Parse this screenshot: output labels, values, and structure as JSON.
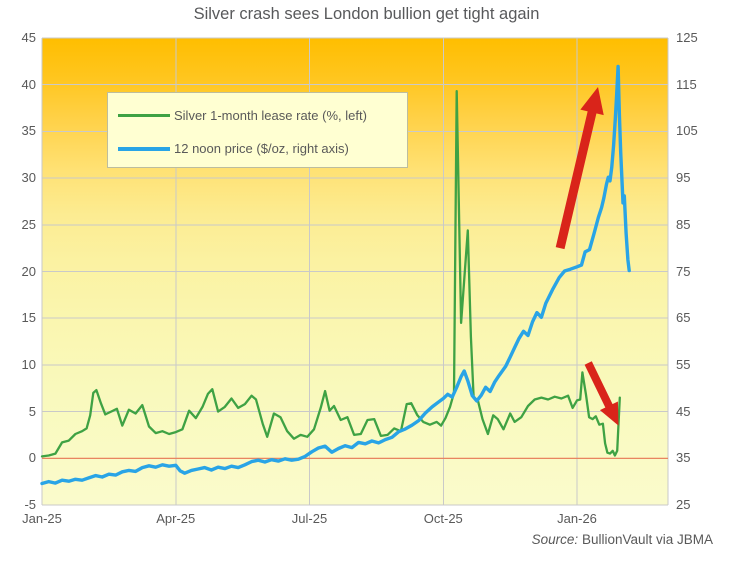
{
  "title": "Silver crash sees London bullion get tight again",
  "source": {
    "prefix": "Source:",
    "text": " BullionVault via JBMA"
  },
  "legend": {
    "items": [
      {
        "label": "Silver 1-month lease rate (%, left)",
        "color": "#3FA244"
      },
      {
        "label": "12 noon price ($/oz, right axis)",
        "color": "#29A4E6"
      }
    ]
  },
  "colors": {
    "background": "#FFFFFF",
    "plot_gradient": [
      [
        "0%",
        "#FFBE00"
      ],
      [
        "8%",
        "#FFC51C"
      ],
      [
        "18%",
        "#FFD24A"
      ],
      [
        "28%",
        "#FFE173"
      ],
      [
        "38%",
        "#FCEC92"
      ],
      [
        "48%",
        "#FBF2A2"
      ],
      [
        "60%",
        "#FAF6AF"
      ],
      [
        "75%",
        "#F9F9BC"
      ],
      [
        "100%",
        "#FAFBCC"
      ]
    ],
    "grid": "#C9C9C9",
    "zero_line": "#ED7B52",
    "lease_rate_line": "#3FA244",
    "price_line": "#29A4E6",
    "arrow": "#D9241A",
    "text": "#595959"
  },
  "chart_data": {
    "type": "line",
    "title": "Silver crash sees London bullion get tight again",
    "x_axis": {
      "range": [
        0,
        14.04
      ],
      "unit": "months since Jan-2025",
      "ticks": [
        {
          "t": 0,
          "label": "Jan-25"
        },
        {
          "t": 3,
          "label": "Apr-25"
        },
        {
          "t": 6,
          "label": "Jul-25"
        },
        {
          "t": 9,
          "label": "Oct-25"
        },
        {
          "t": 12,
          "label": "Jan-26"
        }
      ]
    },
    "y_left": {
      "label": "Silver 1-month lease rate (%)",
      "range": [
        -5,
        45
      ],
      "ticks": [
        45,
        40,
        35,
        30,
        25,
        20,
        15,
        10,
        5,
        0,
        -5
      ]
    },
    "y_right": {
      "label": "12 noon price ($/oz)",
      "range": [
        25,
        125
      ],
      "ticks": [
        125,
        115,
        105,
        95,
        85,
        75,
        65,
        55,
        45,
        35,
        25
      ]
    },
    "zero_line": {
      "axis": "left",
      "value": 0
    },
    "grid": true,
    "legend_position": "top-left",
    "series": [
      {
        "name": "lease-rate",
        "label": "Silver 1-month lease rate (%, left)",
        "axis": "left",
        "color": "#3FA244",
        "width": 2.3,
        "points": [
          [
            0,
            0.2
          ],
          [
            0.15,
            0.3
          ],
          [
            0.3,
            0.5
          ],
          [
            0.45,
            1.7
          ],
          [
            0.6,
            1.9
          ],
          [
            0.75,
            2.6
          ],
          [
            0.9,
            2.9
          ],
          [
            1.0,
            3.2
          ],
          [
            1.08,
            4.6
          ],
          [
            1.15,
            7.0
          ],
          [
            1.22,
            7.3
          ],
          [
            1.32,
            5.9
          ],
          [
            1.42,
            4.7
          ],
          [
            1.55,
            5.0
          ],
          [
            1.68,
            5.3
          ],
          [
            1.8,
            3.5
          ],
          [
            1.95,
            5.2
          ],
          [
            2.1,
            4.8
          ],
          [
            2.25,
            5.7
          ],
          [
            2.4,
            3.4
          ],
          [
            2.55,
            2.7
          ],
          [
            2.7,
            2.9
          ],
          [
            2.85,
            2.6
          ],
          [
            3.0,
            2.8
          ],
          [
            3.15,
            3.1
          ],
          [
            3.3,
            5.1
          ],
          [
            3.45,
            4.3
          ],
          [
            3.6,
            5.5
          ],
          [
            3.72,
            6.9
          ],
          [
            3.82,
            7.4
          ],
          [
            3.95,
            5.0
          ],
          [
            4.1,
            5.5
          ],
          [
            4.25,
            6.4
          ],
          [
            4.4,
            5.4
          ],
          [
            4.55,
            5.8
          ],
          [
            4.7,
            6.7
          ],
          [
            4.8,
            6.3
          ],
          [
            4.95,
            3.7
          ],
          [
            5.05,
            2.3
          ],
          [
            5.2,
            4.8
          ],
          [
            5.35,
            4.4
          ],
          [
            5.5,
            2.9
          ],
          [
            5.65,
            2.1
          ],
          [
            5.8,
            2.5
          ],
          [
            5.95,
            2.3
          ],
          [
            6.1,
            3.1
          ],
          [
            6.25,
            5.4
          ],
          [
            6.35,
            7.2
          ],
          [
            6.45,
            5.1
          ],
          [
            6.55,
            5.6
          ],
          [
            6.7,
            4.1
          ],
          [
            6.85,
            4.4
          ],
          [
            7.0,
            2.5
          ],
          [
            7.15,
            2.6
          ],
          [
            7.3,
            4.1
          ],
          [
            7.45,
            4.2
          ],
          [
            7.6,
            2.4
          ],
          [
            7.75,
            2.5
          ],
          [
            7.9,
            3.2
          ],
          [
            8.05,
            2.9
          ],
          [
            8.18,
            5.8
          ],
          [
            8.28,
            5.9
          ],
          [
            8.42,
            4.6
          ],
          [
            8.55,
            3.9
          ],
          [
            8.7,
            3.6
          ],
          [
            8.85,
            3.9
          ],
          [
            8.95,
            3.5
          ],
          [
            9.05,
            4.3
          ],
          [
            9.15,
            5.5
          ],
          [
            9.24,
            7.0
          ],
          [
            9.3,
            39.3
          ],
          [
            9.4,
            14.5
          ],
          [
            9.55,
            24.4
          ],
          [
            9.62,
            13.0
          ],
          [
            9.68,
            6.6
          ],
          [
            9.78,
            6.1
          ],
          [
            9.88,
            4.2
          ],
          [
            10.0,
            2.6
          ],
          [
            10.12,
            4.6
          ],
          [
            10.22,
            4.2
          ],
          [
            10.35,
            3.1
          ],
          [
            10.5,
            4.8
          ],
          [
            10.6,
            3.9
          ],
          [
            10.75,
            4.4
          ],
          [
            10.9,
            5.6
          ],
          [
            11.05,
            6.3
          ],
          [
            11.2,
            6.5
          ],
          [
            11.35,
            6.3
          ],
          [
            11.5,
            6.6
          ],
          [
            11.65,
            6.4
          ],
          [
            11.8,
            6.7
          ],
          [
            11.9,
            5.4
          ],
          [
            12.0,
            6.2
          ],
          [
            12.07,
            6.3
          ],
          [
            12.12,
            9.2
          ],
          [
            12.2,
            6.8
          ],
          [
            12.27,
            4.4
          ],
          [
            12.35,
            4.2
          ],
          [
            12.42,
            4.5
          ],
          [
            12.5,
            3.6
          ],
          [
            12.58,
            3.7
          ],
          [
            12.63,
            1.6
          ],
          [
            12.68,
            0.6
          ],
          [
            12.74,
            0.5
          ],
          [
            12.8,
            0.8
          ],
          [
            12.85,
            0.3
          ],
          [
            12.9,
            0.8
          ],
          [
            12.96,
            6.5
          ]
        ]
      },
      {
        "name": "noon-price",
        "label": "12 noon price ($/oz, right axis)",
        "axis": "right",
        "color": "#29A4E6",
        "width": 3.4,
        "points": [
          [
            0,
            29.6
          ],
          [
            0.15,
            30.0
          ],
          [
            0.3,
            29.7
          ],
          [
            0.45,
            30.3
          ],
          [
            0.6,
            30.1
          ],
          [
            0.75,
            30.5
          ],
          [
            0.9,
            30.3
          ],
          [
            1.05,
            30.8
          ],
          [
            1.2,
            31.3
          ],
          [
            1.35,
            31.0
          ],
          [
            1.5,
            31.6
          ],
          [
            1.65,
            31.4
          ],
          [
            1.8,
            32.1
          ],
          [
            1.95,
            32.4
          ],
          [
            2.1,
            32.2
          ],
          [
            2.25,
            33.0
          ],
          [
            2.4,
            33.4
          ],
          [
            2.55,
            33.1
          ],
          [
            2.7,
            33.6
          ],
          [
            2.85,
            33.3
          ],
          [
            3.0,
            33.5
          ],
          [
            3.1,
            32.3
          ],
          [
            3.2,
            31.8
          ],
          [
            3.35,
            32.4
          ],
          [
            3.5,
            32.7
          ],
          [
            3.65,
            33.0
          ],
          [
            3.8,
            32.5
          ],
          [
            3.95,
            33.1
          ],
          [
            4.1,
            32.8
          ],
          [
            4.25,
            33.3
          ],
          [
            4.4,
            33.0
          ],
          [
            4.55,
            33.6
          ],
          [
            4.7,
            34.3
          ],
          [
            4.85,
            34.6
          ],
          [
            5.0,
            34.2
          ],
          [
            5.15,
            34.7
          ],
          [
            5.3,
            34.4
          ],
          [
            5.45,
            34.9
          ],
          [
            5.6,
            34.6
          ],
          [
            5.75,
            34.8
          ],
          [
            5.9,
            35.4
          ],
          [
            6.05,
            36.4
          ],
          [
            6.2,
            37.2
          ],
          [
            6.35,
            37.6
          ],
          [
            6.5,
            36.3
          ],
          [
            6.65,
            37.1
          ],
          [
            6.8,
            37.7
          ],
          [
            6.95,
            37.3
          ],
          [
            7.1,
            38.4
          ],
          [
            7.25,
            38.1
          ],
          [
            7.4,
            38.7
          ],
          [
            7.55,
            38.3
          ],
          [
            7.7,
            39.0
          ],
          [
            7.85,
            39.5
          ],
          [
            8.0,
            40.7
          ],
          [
            8.15,
            41.3
          ],
          [
            8.3,
            42.1
          ],
          [
            8.45,
            43.1
          ],
          [
            8.6,
            44.7
          ],
          [
            8.75,
            46.0
          ],
          [
            8.9,
            47.1
          ],
          [
            9.0,
            47.8
          ],
          [
            9.1,
            48.7
          ],
          [
            9.2,
            48.1
          ],
          [
            9.3,
            50.2
          ],
          [
            9.4,
            52.5
          ],
          [
            9.47,
            53.7
          ],
          [
            9.55,
            51.6
          ],
          [
            9.65,
            48.4
          ],
          [
            9.75,
            47.3
          ],
          [
            9.85,
            48.5
          ],
          [
            9.95,
            50.2
          ],
          [
            10.05,
            49.3
          ],
          [
            10.15,
            51.3
          ],
          [
            10.25,
            52.7
          ],
          [
            10.4,
            54.7
          ],
          [
            10.5,
            56.7
          ],
          [
            10.6,
            58.7
          ],
          [
            10.7,
            60.7
          ],
          [
            10.8,
            62.2
          ],
          [
            10.9,
            61.3
          ],
          [
            11.0,
            64.2
          ],
          [
            11.1,
            66.2
          ],
          [
            11.2,
            65.2
          ],
          [
            11.3,
            68.2
          ],
          [
            11.45,
            71.1
          ],
          [
            11.6,
            73.7
          ],
          [
            11.72,
            75.1
          ],
          [
            11.85,
            75.5
          ],
          [
            12.0,
            76.0
          ],
          [
            12.1,
            76.4
          ],
          [
            12.18,
            79.2
          ],
          [
            12.28,
            79.7
          ],
          [
            12.38,
            83.1
          ],
          [
            12.48,
            86.6
          ],
          [
            12.55,
            88.7
          ],
          [
            12.6,
            90.7
          ],
          [
            12.66,
            93.7
          ],
          [
            12.7,
            95.2
          ],
          [
            12.74,
            94.4
          ],
          [
            12.78,
            97.4
          ],
          [
            12.82,
            102
          ],
          [
            12.86,
            108
          ],
          [
            12.89,
            113
          ],
          [
            12.92,
            118.9
          ],
          [
            12.95,
            108.5
          ],
          [
            12.98,
            100.5
          ],
          [
            13.03,
            89.7
          ],
          [
            13.06,
            91.2
          ],
          [
            13.1,
            83.2
          ],
          [
            13.14,
            77.5
          ],
          [
            13.17,
            75.2
          ]
        ]
      }
    ],
    "annotations": [
      {
        "name": "up-arrow",
        "axis": "right",
        "tail": [
          11.62,
          80.0
        ],
        "tip": [
          12.47,
          114.5
        ],
        "shaft_width": 9,
        "head_length": 26,
        "head_width": 24,
        "color": "#D9241A"
      },
      {
        "name": "down-arrow",
        "axis": "left",
        "tail": [
          12.25,
          10.2
        ],
        "tip": [
          12.93,
          3.5
        ],
        "shaft_width": 8,
        "head_length": 22,
        "head_width": 20,
        "color": "#D9241A"
      }
    ]
  }
}
